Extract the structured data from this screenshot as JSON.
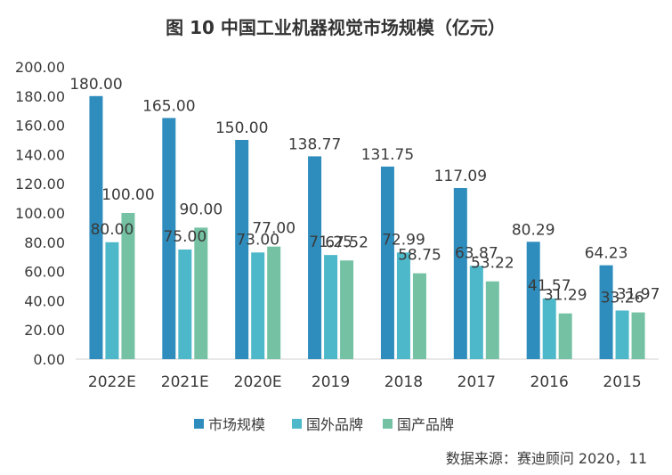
{
  "chart_data": {
    "type": "bar",
    "title": "图 10  中国工业机器视觉市场规模（亿元）",
    "categories": [
      "2022E",
      "2021E",
      "2020E",
      "2019",
      "2018",
      "2017",
      "2016",
      "2015"
    ],
    "series": [
      {
        "name": "市场规模",
        "color": "#2e8dbd",
        "values": [
          180.0,
          165.0,
          150.0,
          138.77,
          131.75,
          117.09,
          80.29,
          64.23
        ]
      },
      {
        "name": "国外品牌",
        "color": "#4db8c9",
        "values": [
          80.0,
          75.0,
          73.0,
          71.25,
          72.99,
          63.87,
          41.57,
          33.26
        ]
      },
      {
        "name": "国产品牌",
        "color": "#74c2a3",
        "values": [
          100.0,
          90.0,
          77.0,
          67.52,
          58.75,
          53.22,
          31.29,
          31.97
        ]
      }
    ],
    "data_labels": [
      [
        "180.00",
        "165.00",
        "150.00",
        "138.77",
        "131.75",
        "117.09",
        "80.29",
        "64.23"
      ],
      [
        "80.00",
        "75.00",
        "73.00",
        "71.25",
        "72.99",
        "63.87",
        "41.57",
        "33.26"
      ],
      [
        "100.00",
        "90.00",
        "77.00",
        "67.52",
        "58.75",
        "53.22",
        "31.29",
        "31.97"
      ]
    ],
    "yticks": [
      "0.00",
      "20.00",
      "40.00",
      "60.00",
      "80.00",
      "100.00",
      "120.00",
      "140.00",
      "160.00",
      "180.00",
      "200.00"
    ],
    "ylim": [
      0,
      200
    ],
    "xlabel": "",
    "ylabel": "",
    "grid": false,
    "legend_position": "bottom"
  },
  "source": "数据来源：赛迪顾问 2020，11"
}
